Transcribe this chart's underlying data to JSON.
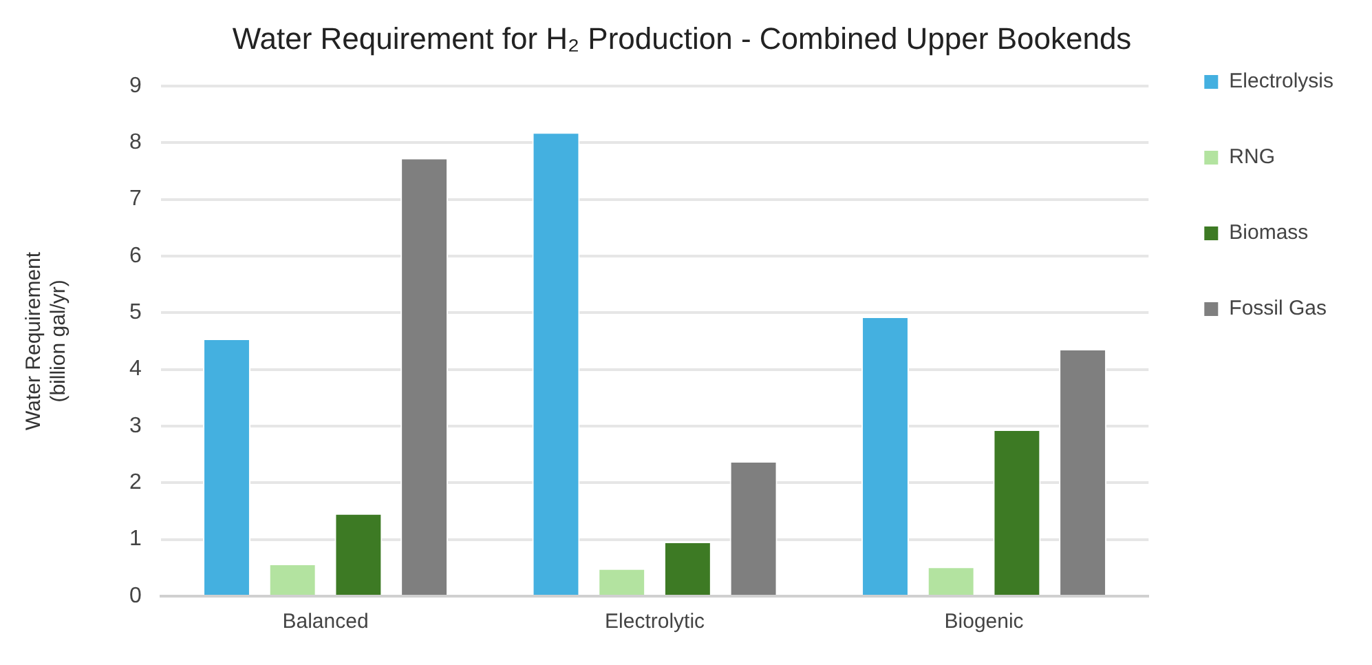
{
  "chart_data": {
    "type": "bar",
    "title": "Water Requirement for H₂ Production - Combined Upper Bookends",
    "ylabel": "Water Requirement (billion gal/yr)",
    "categories": [
      "Balanced",
      "Electrolytic",
      "Biogenic"
    ],
    "series": [
      {
        "name": "Electrolysis",
        "color": "#44b0e0",
        "values": [
          4.54,
          8.18,
          4.93
        ]
      },
      {
        "name": "RNG",
        "color": "#b3e3a0",
        "values": [
          0.57,
          0.49,
          0.52
        ]
      },
      {
        "name": "Biomass",
        "color": "#3d7a24",
        "values": [
          1.46,
          0.96,
          2.94
        ]
      },
      {
        "name": "Fossil Gas",
        "color": "#7f7f7f",
        "values": [
          7.73,
          2.38,
          4.36
        ]
      }
    ],
    "ylim": [
      0,
      9
    ],
    "yticks": [
      0,
      1,
      2,
      3,
      4,
      5,
      6,
      7,
      8,
      9
    ],
    "grid": "y",
    "legend": "right"
  }
}
